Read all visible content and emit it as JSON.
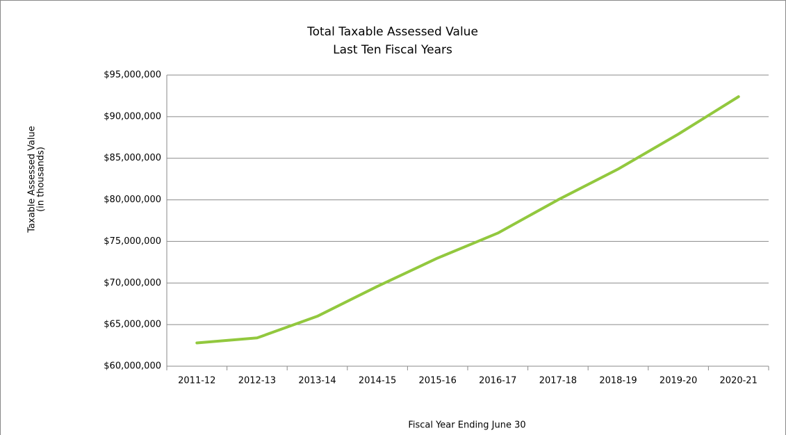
{
  "chart_data": {
    "type": "line",
    "title": "Total Taxable Assessed Value",
    "subtitle": "Last Ten Fiscal Years",
    "x_label": "Fiscal Year Ending June 30",
    "y_label": [
      "Taxable Assessed Value",
      "(in thousands)"
    ],
    "categories": [
      "2011-12",
      "2012-13",
      "2013-14",
      "2014-15",
      "2015-16",
      "2016-17",
      "2017-18",
      "2018-19",
      "2019-20",
      "2020-21"
    ],
    "series": [
      {
        "name": "Total Taxable Assessed Value",
        "color": "#92c83e",
        "values": [
          62800000,
          63400000,
          66000000,
          69600000,
          73000000,
          76000000,
          80000000,
          83700000,
          87900000,
          92400000
        ]
      }
    ],
    "ylim": [
      60000000,
      95000000
    ],
    "yticks": [
      {
        "value": 60000000,
        "label": "$60,000,000"
      },
      {
        "value": 65000000,
        "label": "$65,000,000"
      },
      {
        "value": 70000000,
        "label": "$70,000,000"
      },
      {
        "value": 75000000,
        "label": "$75,000,000"
      },
      {
        "value": 80000000,
        "label": "$80,000,000"
      },
      {
        "value": 85000000,
        "label": "$85,000,000"
      },
      {
        "value": 90000000,
        "label": "$90,000,000"
      },
      {
        "value": 95000000,
        "label": "$95,000,000"
      }
    ],
    "grid": true,
    "legend": false
  }
}
